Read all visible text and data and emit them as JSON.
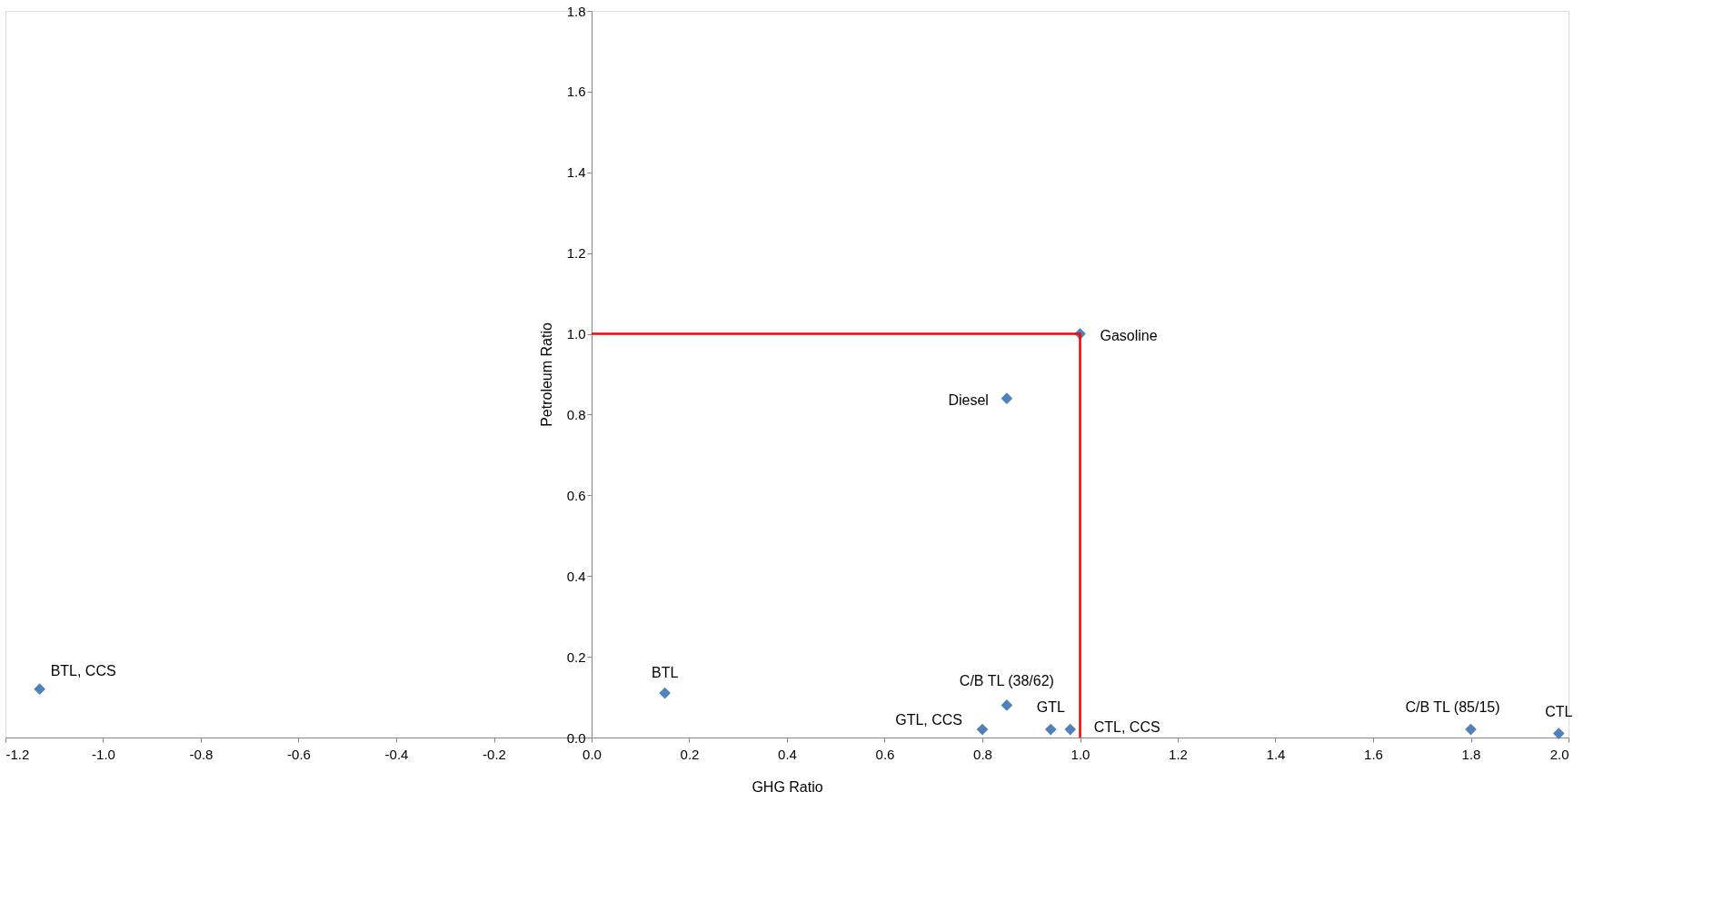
{
  "chart_data": {
    "type": "scatter",
    "xlabel": "GHG Ratio",
    "ylabel": "Petroleum Ratio",
    "xlim": [
      -1.2,
      2.0
    ],
    "xticks": [
      -1.2,
      {
        "value": -1.0,
        "label": "-1.0"
      },
      -0.8,
      -0.6,
      -0.4,
      -0.2,
      {
        "value": 0.0,
        "label": "0.0"
      },
      0.2,
      0.4,
      0.6,
      0.8,
      {
        "value": 1.0,
        "label": "1.0"
      },
      1.2,
      1.4,
      1.6,
      1.8,
      {
        "value": 2.0,
        "label": "2.0"
      }
    ],
    "ylim": [
      0.0,
      1.8
    ],
    "yticks": [
      {
        "value": 0.0,
        "label": "0.0"
      },
      0.2,
      0.4,
      0.6,
      0.8,
      {
        "value": 1.0,
        "label": "1.0"
      },
      1.2,
      1.4,
      1.6,
      1.8
    ],
    "grid": false,
    "marker": "diamond",
    "series": [
      {
        "color": "#4f81bd",
        "x": [
          -1.13,
          0.15,
          0.8,
          0.85,
          0.94,
          0.98,
          0.85,
          1.0,
          1.8,
          1.98
        ],
        "values": [
          0.12,
          0.11,
          0.02,
          0.08,
          0.02,
          0.02,
          0.84,
          1.0,
          0.02,
          0.01
        ]
      },
      {
        "type": "line",
        "color": "#ff0000",
        "marker": "none",
        "line_style": "solid",
        "x": [
          0.0,
          1.0,
          1.0
        ],
        "values": [
          1.0,
          1.0,
          0.0
        ]
      }
    ],
    "annotations": [
      {
        "text": "BTL, CCS",
        "x": -1.13,
        "y": 0.12
      },
      {
        "text": "BTL",
        "x": 0.15,
        "y": 0.11
      },
      {
        "text": "GTL, CCS",
        "x": 0.8,
        "y": 0.02
      },
      {
        "text": "C/B TL (38/62)",
        "x": 0.85,
        "y": 0.08
      },
      {
        "text": "GTL",
        "x": 0.94,
        "y": 0.02
      },
      {
        "text": "CTL, CCS",
        "x": 0.98,
        "y": 0.02
      },
      {
        "text": "Diesel",
        "x": 0.85,
        "y": 0.84
      },
      {
        "text": "Gasoline",
        "x": 1.0,
        "y": 1.0
      },
      {
        "text": "C/B TL (85/15)",
        "x": 1.8,
        "y": 0.02
      },
      {
        "text": "CTL",
        "x": 1.98,
        "y": 0.01
      }
    ]
  }
}
